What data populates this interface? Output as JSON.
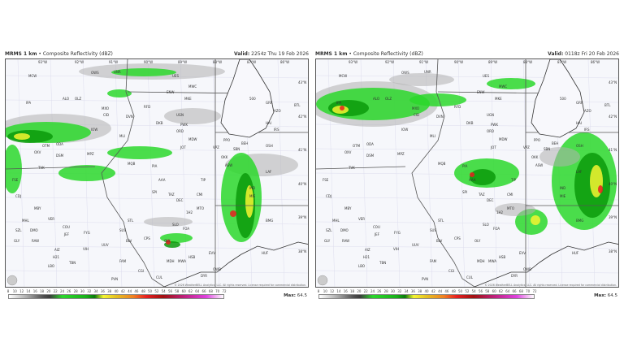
{
  "panels": [
    {
      "product": "MRMS 1 km",
      "subtitle": "Composite Reflectivity (dBZ)",
      "valid_label": "Valid:",
      "valid_time": "2254z Thu 19 Feb 2026",
      "max_label": "Max:",
      "max_value": "64.5"
    },
    {
      "product": "MRMS 1 km",
      "subtitle": "Composite Reflectivity (dBZ)",
      "valid_label": "Valid:",
      "valid_time": "0118z Fri 20 Feb 2026",
      "max_label": "Max:",
      "max_value": "64.5"
    }
  ],
  "copyright": "© 2026 WeatherBELL Analytics, LLC. All rights reserved. License required for commercial distribution.",
  "colorbar_ticks": [
    "8",
    "10",
    "12",
    "14",
    "16",
    "18",
    "20",
    "22",
    "24",
    "26",
    "28",
    "30",
    "32",
    "34",
    "36",
    "38",
    "40",
    "42",
    "44",
    "46",
    "48",
    "50",
    "52",
    "54",
    "56",
    "58",
    "60",
    "62",
    "64",
    "66",
    "68",
    "70",
    "72"
  ],
  "lon_labels": [
    "93°W",
    "92°W",
    "91°W",
    "90°W",
    "89°W",
    "88°W",
    "87°W",
    "86°W"
  ],
  "lat_labels": [
    "43°N",
    "42°N",
    "41°N",
    "40°N",
    "39°N",
    "38°N"
  ],
  "stations": [
    "MCW",
    "IPA",
    "OLZ",
    "MXO",
    "ALO",
    "CID",
    "IOW",
    "DVN",
    "MLI",
    "MPZ",
    "OTM",
    "ODA",
    "OXV",
    "DSM",
    "TVK",
    "FSE",
    "CDJ",
    "MBY",
    "MHL",
    "VER",
    "COU",
    "JEF",
    "FYG",
    "SZL",
    "DMO",
    "GLY",
    "RAW",
    "H21",
    "AIZ",
    "LBO",
    "TBN",
    "VIH",
    "UUV",
    "FAM",
    "STL",
    "SUS",
    "BLV",
    "CPS",
    "MQB",
    "PIA",
    "AAA",
    "SPI",
    "TAZ",
    "DEC",
    "CMI",
    "TIP",
    "MTO",
    "1H2",
    "SLO",
    "FOA",
    "OLY",
    "MDH",
    "MWA",
    "HSB",
    "CUL",
    "EVV",
    "OWB",
    "PVN",
    "CGI",
    "DYR",
    "RFD",
    "DKB",
    "ORD",
    "MDW",
    "JOT",
    "VPZ",
    "PPO",
    "OKK",
    "ASW",
    "SBN",
    "BEH",
    "GRR",
    "AZO",
    "BTL",
    "HAI",
    "IRS",
    "OSH",
    "MKE",
    "UES",
    "MWC",
    "ENW",
    "UGN",
    "PWK",
    "LAF",
    "IND",
    "BMG",
    "HUF",
    "MIE",
    "OWS",
    "UNR",
    "500"
  ],
  "colors": {
    "light": "#2bd82b",
    "medium": "#0a9a0a",
    "heavy": "#f5f530",
    "intense": "#e82020",
    "mix": "#b0b0b0"
  }
}
